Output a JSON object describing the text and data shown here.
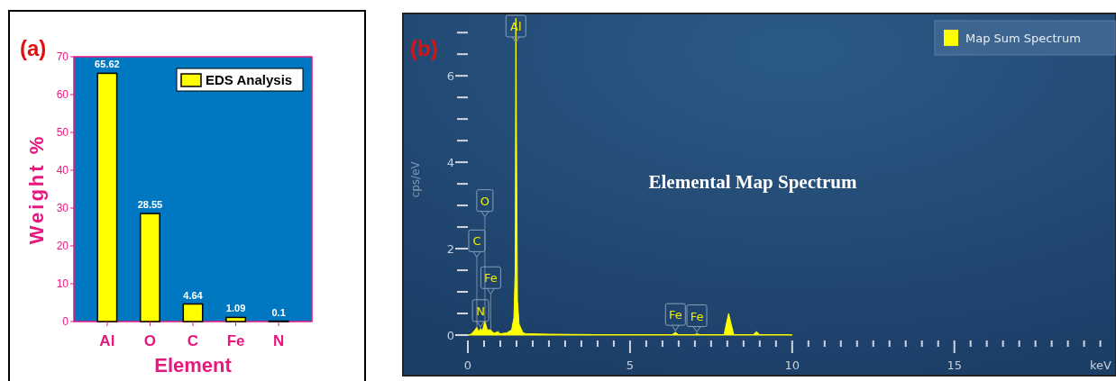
{
  "chart_data": [
    {
      "type": "bar",
      "categories": [
        "Al",
        "O",
        "C",
        "Fe",
        "N"
      ],
      "series": [
        {
          "name": "EDS Analysis",
          "color": "#ffff00",
          "values": [
            65.62,
            28.55,
            4.64,
            1.09,
            0.1
          ]
        }
      ],
      "ylim": [
        0,
        70
      ],
      "yticks": [
        0,
        10,
        20,
        30,
        40,
        50,
        60,
        70
      ],
      "xlabel": "Element",
      "ylabel": "Weight %",
      "legend": "top right",
      "data_labels": true,
      "annotations": [
        "(a)"
      ]
    },
    {
      "type": "area",
      "title": "Elemental Map Spectrum",
      "xlabel": "keV",
      "ylabel": "cps/eV",
      "legend": "top right",
      "x": [
        0,
        0.1,
        0.2,
        0.277,
        0.33,
        0.392,
        0.45,
        0.525,
        0.6,
        0.705,
        0.8,
        0.93,
        1.0,
        1.2,
        1.35,
        1.42,
        1.46,
        1.48,
        1.5,
        1.53,
        1.58,
        1.7,
        1.8,
        2.5,
        4,
        6.3,
        6.4,
        6.5,
        7.0,
        7.06,
        7.15,
        7.9,
        7.98,
        8.04,
        8.12,
        8.2,
        8.8,
        8.9,
        9.0,
        9.9,
        10.0
      ],
      "series": [
        {
          "name": "Map Sum Spectrum",
          "color": "#ffff00",
          "values": [
            0,
            0.02,
            0.1,
            0.18,
            0.08,
            0.15,
            0.1,
            0.32,
            0.12,
            0.12,
            0.04,
            0.08,
            0.03,
            0.05,
            0.12,
            0.4,
            1.5,
            7.33,
            4.5,
            0.8,
            0.25,
            0.05,
            0.03,
            0.02,
            0.01,
            0.01,
            0.06,
            0.01,
            0.01,
            0.03,
            0.01,
            0.01,
            0.3,
            0.5,
            0.25,
            0.01,
            0.01,
            0.08,
            0.01,
            0.01,
            0
          ]
        }
      ],
      "xlim": [
        0,
        19.9
      ],
      "ylim": [
        0,
        7.4
      ],
      "xticks": [
        0,
        {
          "value": 0.5,
          "label": null
        },
        {
          "value": 1,
          "label": null
        },
        {
          "value": 1.5,
          "label": null
        },
        {
          "value": 2,
          "label": null
        },
        {
          "value": 2.5,
          "label": null
        },
        {
          "value": 3,
          "label": null
        },
        {
          "value": 3.5,
          "label": null
        },
        {
          "value": 4,
          "label": null
        },
        {
          "value": 4.5,
          "label": null
        },
        5,
        {
          "value": 5.5,
          "label": null
        },
        {
          "value": 6,
          "label": null
        },
        {
          "value": 6.5,
          "label": null
        },
        {
          "value": 7,
          "label": null
        },
        {
          "value": 7.5,
          "label": null
        },
        {
          "value": 8,
          "label": null
        },
        {
          "value": 8.5,
          "label": null
        },
        {
          "value": 9,
          "label": null
        },
        {
          "value": 9.5,
          "label": null
        },
        10,
        {
          "value": 10.5,
          "label": null
        },
        {
          "value": 11,
          "label": null
        },
        {
          "value": 11.5,
          "label": null
        },
        {
          "value": 12,
          "label": null
        },
        {
          "value": 12.5,
          "label": null
        },
        {
          "value": 13,
          "label": null
        },
        {
          "value": 13.5,
          "label": null
        },
        {
          "value": 14,
          "label": null
        },
        {
          "value": 14.5,
          "label": null
        },
        15,
        {
          "value": 15.5,
          "label": null
        },
        {
          "value": 16,
          "label": null
        },
        {
          "value": 16.5,
          "label": null
        },
        {
          "value": 17,
          "label": null
        },
        {
          "value": 17.5,
          "label": null
        },
        {
          "value": 18,
          "label": null
        },
        {
          "value": 18.5,
          "label": null
        },
        {
          "value": 19,
          "label": null
        },
        {
          "value": 19.5,
          "label": null
        }
      ],
      "yticks": [
        0,
        {
          "value": 0.5,
          "label": null
        },
        {
          "value": 1,
          "label": null
        },
        {
          "value": 1.5,
          "label": null
        },
        2,
        {
          "value": 2.5,
          "label": null
        },
        {
          "value": 3,
          "label": null
        },
        {
          "value": 3.5,
          "label": null
        },
        4,
        {
          "value": 4.5,
          "label": null
        },
        {
          "value": 5,
          "label": null
        },
        {
          "value": 5.5,
          "label": null
        },
        6,
        {
          "value": 6.5,
          "label": null
        },
        {
          "value": 7,
          "label": null
        }
      ],
      "annotations": [
        "(b)",
        {
          "text": "N",
          "x": 0.392,
          "y": 0.15
        },
        {
          "text": "Fe",
          "x": 0.705,
          "y": 0.12
        },
        {
          "text": "C",
          "x": 0.277,
          "y": 0.18
        },
        {
          "text": "O",
          "x": 0.525,
          "y": 0.32
        },
        {
          "text": "Al",
          "x": 1.48,
          "y": 7.33
        },
        {
          "text": "Fe",
          "x": 6.4,
          "y": 0.06
        },
        {
          "text": "Fe",
          "x": 7.06,
          "y": 0.03
        }
      ]
    }
  ]
}
